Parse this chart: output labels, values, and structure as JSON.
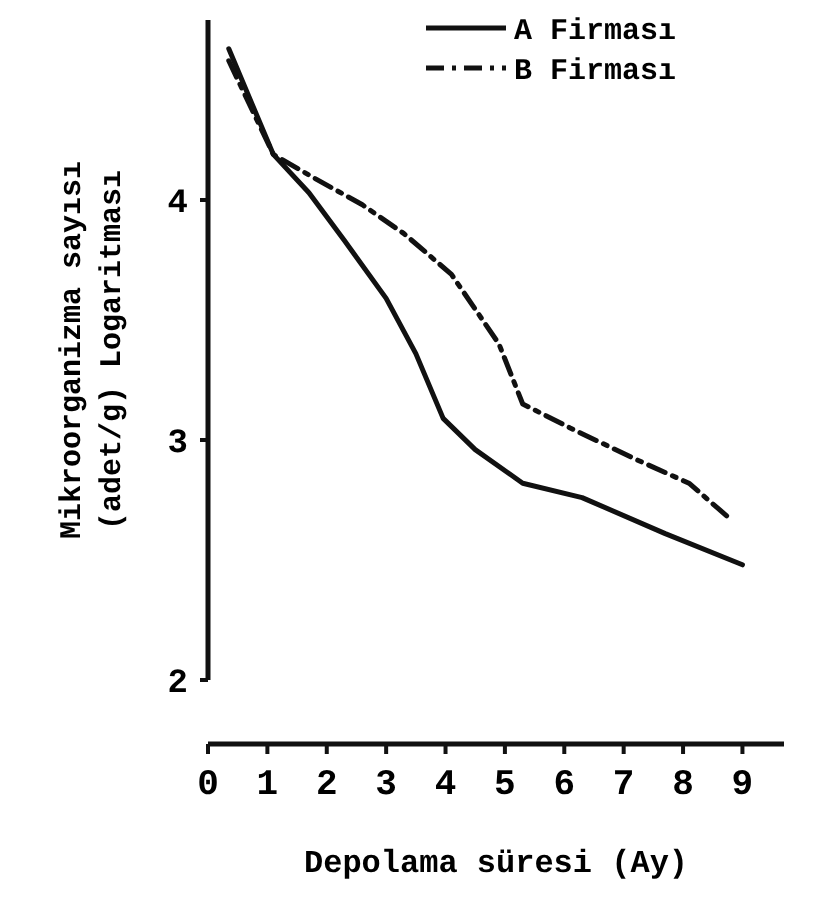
{
  "chart_data": {
    "type": "line",
    "xlabel": "Depolama süresi (Ay)",
    "ylabel": "Mikroorganizma sayısı\n(adet/g) Logaritması",
    "xlim": [
      0,
      9.7
    ],
    "xticks": [
      0,
      1,
      2,
      3,
      4,
      5,
      6,
      7,
      8,
      9
    ],
    "ylim": [
      2,
      4.75
    ],
    "yticks": [
      2,
      3,
      4
    ],
    "legend": "top right",
    "grid": false,
    "series": [
      {
        "name": "A Firması",
        "color": "#111111",
        "line_style": "solid",
        "x": [
          0.35,
          1.1,
          1.7,
          2.3,
          3.0,
          3.5,
          3.96,
          4.5,
          5.3,
          6.3,
          7.7,
          9.0
        ],
        "values": [
          4.63,
          4.19,
          4.03,
          3.83,
          3.59,
          3.36,
          3.09,
          2.96,
          2.82,
          2.76,
          2.61,
          2.48
        ]
      },
      {
        "name": "B Firması",
        "color": "#111111",
        "line_style": "dashed",
        "x": [
          0.35,
          1.1,
          1.8,
          2.6,
          3.3,
          4.1,
          4.9,
          5.3,
          6.1,
          7.2,
          8.1,
          8.8
        ],
        "values": [
          4.58,
          4.19,
          4.09,
          3.98,
          3.86,
          3.69,
          3.4,
          3.15,
          3.05,
          2.92,
          2.82,
          2.67
        ]
      }
    ]
  }
}
